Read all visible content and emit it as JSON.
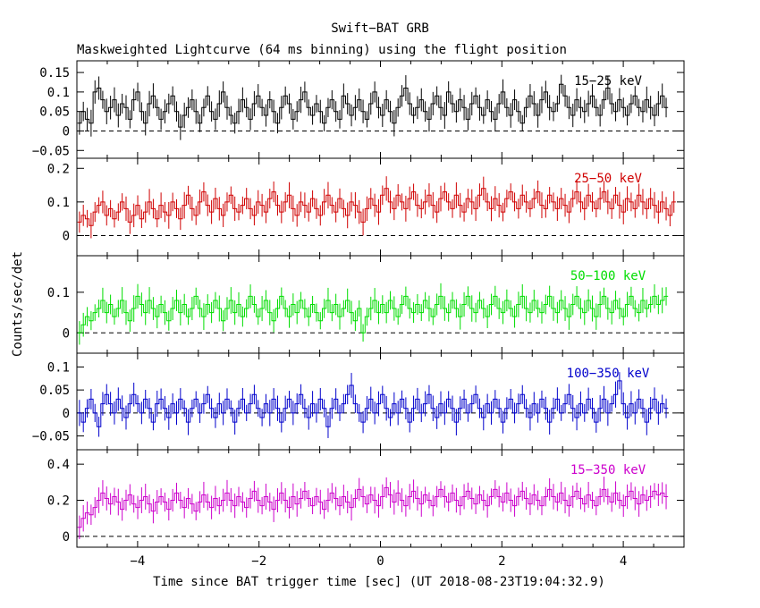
{
  "chart_data": {
    "type": "line",
    "title": "Swift−BAT GRB",
    "subtitle": "Maskweighted Lightcurve (64 ms binning) using the flight position",
    "xlabel": "Time since BAT trigger time [sec] (UT 2018-08-23T19:04:32.9)",
    "ylabel": "Counts/sec/det",
    "xlim": [
      -5.0,
      5.0
    ],
    "x_ticks": [
      -4,
      -2,
      0,
      2,
      4
    ],
    "x_tick_labels": [
      "−4",
      "−2",
      "0",
      "2",
      "4"
    ],
    "grid": false,
    "bin_width": 0.064,
    "panels": [
      {
        "name": "15−25 keV",
        "color": "#000000",
        "ylim": [
          -0.07,
          0.18
        ],
        "y_ticks": [
          -0.05,
          0,
          0.05,
          0.1,
          0.15
        ],
        "y_tick_labels": [
          "−0.05",
          "0",
          "0.05",
          "0.1",
          "0.15"
        ],
        "x_start": -4.99,
        "values": [
          0.02,
          0.05,
          0.03,
          0.02,
          0.1,
          0.11,
          0.08,
          0.05,
          0.06,
          0.08,
          0.04,
          0.07,
          0.06,
          0.03,
          0.08,
          0.1,
          0.05,
          0.02,
          0.07,
          0.09,
          0.06,
          0.03,
          0.05,
          0.07,
          0.09,
          0.05,
          0.01,
          0.04,
          0.06,
          0.08,
          0.05,
          0.02,
          0.06,
          0.09,
          0.05,
          0.03,
          0.07,
          0.1,
          0.06,
          0.04,
          0.02,
          0.05,
          0.08,
          0.06,
          0.03,
          0.07,
          0.09,
          0.06,
          0.04,
          0.08,
          0.05,
          0.02,
          0.06,
          0.09,
          0.07,
          0.03,
          0.05,
          0.08,
          0.1,
          0.06,
          0.04,
          0.07,
          0.05,
          0.02,
          0.06,
          0.08,
          0.05,
          0.03,
          0.09,
          0.07,
          0.04,
          0.06,
          0.08,
          0.05,
          0.03,
          0.07,
          0.1,
          0.06,
          0.04,
          0.08,
          0.05,
          0.02,
          0.06,
          0.09,
          0.11,
          0.07,
          0.04,
          0.06,
          0.08,
          0.05,
          0.03,
          0.07,
          0.09,
          0.06,
          0.04,
          0.1,
          0.07,
          0.05,
          0.08,
          0.06,
          0.03,
          0.07,
          0.09,
          0.06,
          0.04,
          0.08,
          0.05,
          0.03,
          0.07,
          0.1,
          0.06,
          0.04,
          0.08,
          0.05,
          0.02,
          0.06,
          0.09,
          0.07,
          0.04,
          0.08,
          0.1,
          0.06,
          0.05,
          0.07,
          0.12,
          0.09,
          0.06,
          0.04,
          0.08,
          0.06,
          0.05,
          0.07,
          0.09,
          0.06,
          0.04,
          0.08,
          0.11,
          0.07,
          0.05,
          0.08,
          0.06,
          0.04,
          0.07,
          0.09,
          0.06,
          0.05,
          0.08,
          0.06,
          0.04,
          0.07,
          0.09,
          0.06
        ]
      },
      {
        "name": "25−50 keV",
        "color": "#d00000",
        "ylim": [
          -0.06,
          0.23
        ],
        "y_ticks": [
          0,
          0.1,
          0.2
        ],
        "y_tick_labels": [
          "0",
          "0.1",
          "0.2"
        ],
        "x_start": -4.99,
        "values": [
          0.04,
          0.06,
          0.05,
          0.03,
          0.07,
          0.09,
          0.1,
          0.06,
          0.08,
          0.05,
          0.07,
          0.1,
          0.08,
          0.04,
          0.06,
          0.09,
          0.05,
          0.07,
          0.1,
          0.08,
          0.05,
          0.09,
          0.07,
          0.06,
          0.1,
          0.08,
          0.05,
          0.09,
          0.12,
          0.08,
          0.06,
          0.1,
          0.13,
          0.09,
          0.07,
          0.11,
          0.08,
          0.06,
          0.1,
          0.12,
          0.08,
          0.07,
          0.09,
          0.11,
          0.08,
          0.06,
          0.1,
          0.09,
          0.07,
          0.11,
          0.13,
          0.09,
          0.07,
          0.1,
          0.12,
          0.08,
          0.06,
          0.1,
          0.09,
          0.07,
          0.11,
          0.08,
          0.06,
          0.1,
          0.12,
          0.09,
          0.07,
          0.11,
          0.08,
          0.06,
          0.1,
          0.09,
          0.07,
          0.04,
          0.08,
          0.11,
          0.09,
          0.07,
          0.12,
          0.14,
          0.1,
          0.08,
          0.12,
          0.1,
          0.08,
          0.11,
          0.13,
          0.09,
          0.08,
          0.1,
          0.12,
          0.09,
          0.07,
          0.11,
          0.13,
          0.1,
          0.08,
          0.12,
          0.09,
          0.07,
          0.11,
          0.1,
          0.08,
          0.12,
          0.14,
          0.1,
          0.08,
          0.11,
          0.09,
          0.07,
          0.11,
          0.13,
          0.1,
          0.08,
          0.12,
          0.1,
          0.08,
          0.11,
          0.13,
          0.09,
          0.08,
          0.12,
          0.1,
          0.08,
          0.11,
          0.09,
          0.07,
          0.11,
          0.13,
          0.1,
          0.08,
          0.12,
          0.1,
          0.08,
          0.11,
          0.13,
          0.1,
          0.08,
          0.12,
          0.09,
          0.07,
          0.11,
          0.1,
          0.08,
          0.12,
          0.1,
          0.08,
          0.11,
          0.09,
          0.07,
          0.1,
          0.08,
          0.06,
          0.1
        ]
      },
      {
        "name": "50−100 keV",
        "color": "#00dd00",
        "ylim": [
          -0.05,
          0.19
        ],
        "y_ticks": [
          0,
          0.1
        ],
        "y_tick_labels": [
          "0",
          "0.1"
        ],
        "x_start": -4.99,
        "values": [
          0.0,
          0.02,
          0.04,
          0.03,
          0.05,
          0.06,
          0.08,
          0.05,
          0.07,
          0.04,
          0.06,
          0.08,
          0.05,
          0.03,
          0.06,
          0.09,
          0.07,
          0.05,
          0.08,
          0.06,
          0.04,
          0.07,
          0.05,
          0.03,
          0.06,
          0.08,
          0.05,
          0.07,
          0.04,
          0.06,
          0.09,
          0.06,
          0.04,
          0.07,
          0.05,
          0.08,
          0.06,
          0.03,
          0.06,
          0.08,
          0.05,
          0.07,
          0.04,
          0.06,
          0.09,
          0.07,
          0.04,
          0.06,
          0.08,
          0.05,
          0.03,
          0.06,
          0.09,
          0.06,
          0.04,
          0.07,
          0.05,
          0.08,
          0.06,
          0.04,
          0.07,
          0.05,
          0.03,
          0.06,
          0.08,
          0.05,
          0.07,
          0.04,
          0.06,
          0.08,
          0.05,
          0.03,
          0.06,
          0.0,
          0.04,
          0.06,
          0.08,
          0.05,
          0.07,
          0.05,
          0.08,
          0.06,
          0.04,
          0.07,
          0.09,
          0.06,
          0.05,
          0.07,
          0.05,
          0.08,
          0.06,
          0.04,
          0.07,
          0.09,
          0.06,
          0.05,
          0.08,
          0.06,
          0.04,
          0.07,
          0.09,
          0.06,
          0.05,
          0.08,
          0.06,
          0.04,
          0.07,
          0.09,
          0.06,
          0.05,
          0.08,
          0.06,
          0.04,
          0.07,
          0.09,
          0.06,
          0.05,
          0.08,
          0.06,
          0.05,
          0.07,
          0.09,
          0.06,
          0.05,
          0.08,
          0.06,
          0.04,
          0.07,
          0.09,
          0.06,
          0.05,
          0.08,
          0.06,
          0.04,
          0.07,
          0.09,
          0.06,
          0.05,
          0.08,
          0.06,
          0.04,
          0.07,
          0.09,
          0.06,
          0.05,
          0.08,
          0.06,
          0.07,
          0.09,
          0.07,
          0.08,
          0.09
        ]
      },
      {
        "name": "100−350 keV",
        "color": "#0000cc",
        "ylim": [
          -0.08,
          0.13
        ],
        "y_ticks": [
          -0.05,
          0,
          0.05,
          0.1
        ],
        "y_tick_labels": [
          "−0.05",
          "0",
          "0.05",
          "0.1"
        ],
        "x_start": -4.99,
        "values": [
          0.0,
          -0.02,
          0.01,
          0.03,
          0.0,
          -0.03,
          0.02,
          0.04,
          0.02,
          0.0,
          0.03,
          0.01,
          -0.01,
          0.02,
          0.04,
          0.02,
          0.0,
          0.03,
          0.01,
          -0.02,
          0.02,
          0.03,
          0.01,
          -0.01,
          0.02,
          0.0,
          0.03,
          0.01,
          -0.02,
          0.01,
          0.03,
          0.0,
          0.02,
          0.04,
          0.01,
          -0.01,
          0.02,
          0.0,
          0.03,
          0.01,
          -0.02,
          0.01,
          0.03,
          0.0,
          0.02,
          0.04,
          0.01,
          -0.01,
          0.02,
          0.0,
          0.03,
          0.01,
          -0.02,
          0.01,
          0.03,
          0.0,
          0.02,
          0.04,
          0.01,
          -0.01,
          0.02,
          0.0,
          0.03,
          0.01,
          -0.03,
          0.01,
          0.03,
          0.0,
          0.02,
          0.04,
          0.06,
          0.02,
          0.0,
          -0.02,
          0.01,
          0.03,
          0.0,
          0.02,
          0.04,
          0.01,
          -0.01,
          0.02,
          0.0,
          0.03,
          0.01,
          -0.02,
          0.01,
          0.03,
          0.0,
          0.02,
          0.04,
          0.01,
          -0.01,
          0.02,
          0.0,
          0.03,
          0.01,
          -0.02,
          0.01,
          0.03,
          0.0,
          0.02,
          0.04,
          0.01,
          -0.01,
          0.02,
          0.0,
          0.03,
          0.01,
          -0.02,
          0.01,
          0.03,
          0.0,
          0.02,
          0.04,
          0.01,
          -0.01,
          0.02,
          0.0,
          0.03,
          0.01,
          -0.02,
          0.01,
          0.03,
          0.0,
          0.02,
          0.04,
          0.01,
          -0.01,
          0.02,
          0.0,
          0.03,
          0.01,
          -0.02,
          0.01,
          0.03,
          0.0,
          0.02,
          0.04,
          0.07,
          0.02,
          -0.01,
          0.02,
          0.0,
          0.03,
          0.01,
          -0.02,
          0.01,
          0.03,
          0.0,
          0.02,
          0.01
        ]
      },
      {
        "name": "15−350 keV",
        "color": "#cc00cc",
        "ylim": [
          -0.06,
          0.48
        ],
        "y_ticks": [
          0,
          0.2,
          0.4
        ],
        "y_tick_labels": [
          "0",
          "0.2",
          "0.4"
        ],
        "x_start": -4.99,
        "values": [
          0.05,
          0.1,
          0.13,
          0.12,
          0.16,
          0.2,
          0.24,
          0.21,
          0.18,
          0.22,
          0.19,
          0.15,
          0.2,
          0.23,
          0.18,
          0.16,
          0.2,
          0.22,
          0.18,
          0.14,
          0.19,
          0.22,
          0.19,
          0.15,
          0.2,
          0.24,
          0.2,
          0.16,
          0.21,
          0.18,
          0.14,
          0.19,
          0.23,
          0.19,
          0.16,
          0.21,
          0.17,
          0.2,
          0.24,
          0.2,
          0.17,
          0.22,
          0.19,
          0.16,
          0.21,
          0.25,
          0.2,
          0.17,
          0.22,
          0.19,
          0.15,
          0.2,
          0.24,
          0.2,
          0.16,
          0.22,
          0.18,
          0.21,
          0.25,
          0.21,
          0.17,
          0.22,
          0.19,
          0.15,
          0.2,
          0.24,
          0.21,
          0.17,
          0.22,
          0.19,
          0.16,
          0.21,
          0.26,
          0.22,
          0.18,
          0.23,
          0.2,
          0.17,
          0.22,
          0.27,
          0.23,
          0.19,
          0.24,
          0.2,
          0.17,
          0.22,
          0.25,
          0.21,
          0.18,
          0.23,
          0.2,
          0.17,
          0.22,
          0.26,
          0.22,
          0.19,
          0.24,
          0.2,
          0.17,
          0.22,
          0.25,
          0.21,
          0.18,
          0.23,
          0.2,
          0.17,
          0.22,
          0.26,
          0.22,
          0.19,
          0.24,
          0.2,
          0.17,
          0.22,
          0.25,
          0.21,
          0.18,
          0.23,
          0.2,
          0.17,
          0.22,
          0.26,
          0.22,
          0.19,
          0.24,
          0.2,
          0.17,
          0.22,
          0.25,
          0.21,
          0.18,
          0.23,
          0.2,
          0.17,
          0.22,
          0.26,
          0.22,
          0.19,
          0.24,
          0.2,
          0.17,
          0.22,
          0.25,
          0.21,
          0.18,
          0.23,
          0.2,
          0.22,
          0.25,
          0.23,
          0.24,
          0.22
        ]
      }
    ]
  }
}
